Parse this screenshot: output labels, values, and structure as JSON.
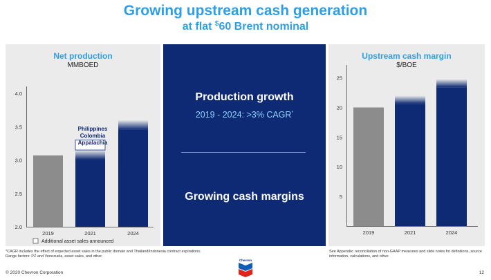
{
  "header": {
    "title": "Growing upstream cash generation",
    "subtitle_prefix": "at flat ",
    "subtitle_currency": "$",
    "subtitle_rest": "60 Brent nominal"
  },
  "middle": {
    "heading": "Production growth",
    "cagr_text": "2019 - 2024: >3% CAGR",
    "cagr_mark": "*",
    "bottom_heading": "Growing cash margins"
  },
  "chart_data": [
    {
      "type": "bar",
      "title": "Net production",
      "ylabel": "MMBOED",
      "categories": [
        "2019",
        "2021",
        "2024"
      ],
      "values": [
        3.07,
        3.15,
        3.6
      ],
      "ylim": [
        2.0,
        4.0
      ],
      "yticks": [
        "2.0",
        "2.5",
        "3.0",
        "3.5",
        "4.0"
      ],
      "annotation": [
        "Philippines",
        "Colombia",
        "Appalachia"
      ],
      "legend": "Additional asset sales announced",
      "colors": {
        "base": "#8c8c8c",
        "growth": "#0f2a75"
      }
    },
    {
      "type": "bar",
      "title": "Upstream cash margin",
      "ylabel": "$/BOE",
      "categories": [
        "2019",
        "2021",
        "2024"
      ],
      "values": [
        20,
        22,
        24.8
      ],
      "ylim": [
        0,
        26
      ],
      "yticks": [
        "5",
        "10",
        "15",
        "20",
        "25"
      ],
      "colors": {
        "base": "#8c8c8c",
        "growth": "#0f2a75"
      }
    }
  ],
  "footnotes": {
    "left": "*CAGR includes the effect of expected asset sales in the public domain and Thailand/Indonesia contract expirations. Range factors: PZ and Venezuela, asset sales, and other.",
    "right": "See Appendix: reconciliation of non-GAAP measures and slide notes for definitions, source information, calculations, and other."
  },
  "footer": {
    "copyright": "© 2020 Chevron Corporation",
    "page": "12",
    "logo_text": "Chevron"
  }
}
